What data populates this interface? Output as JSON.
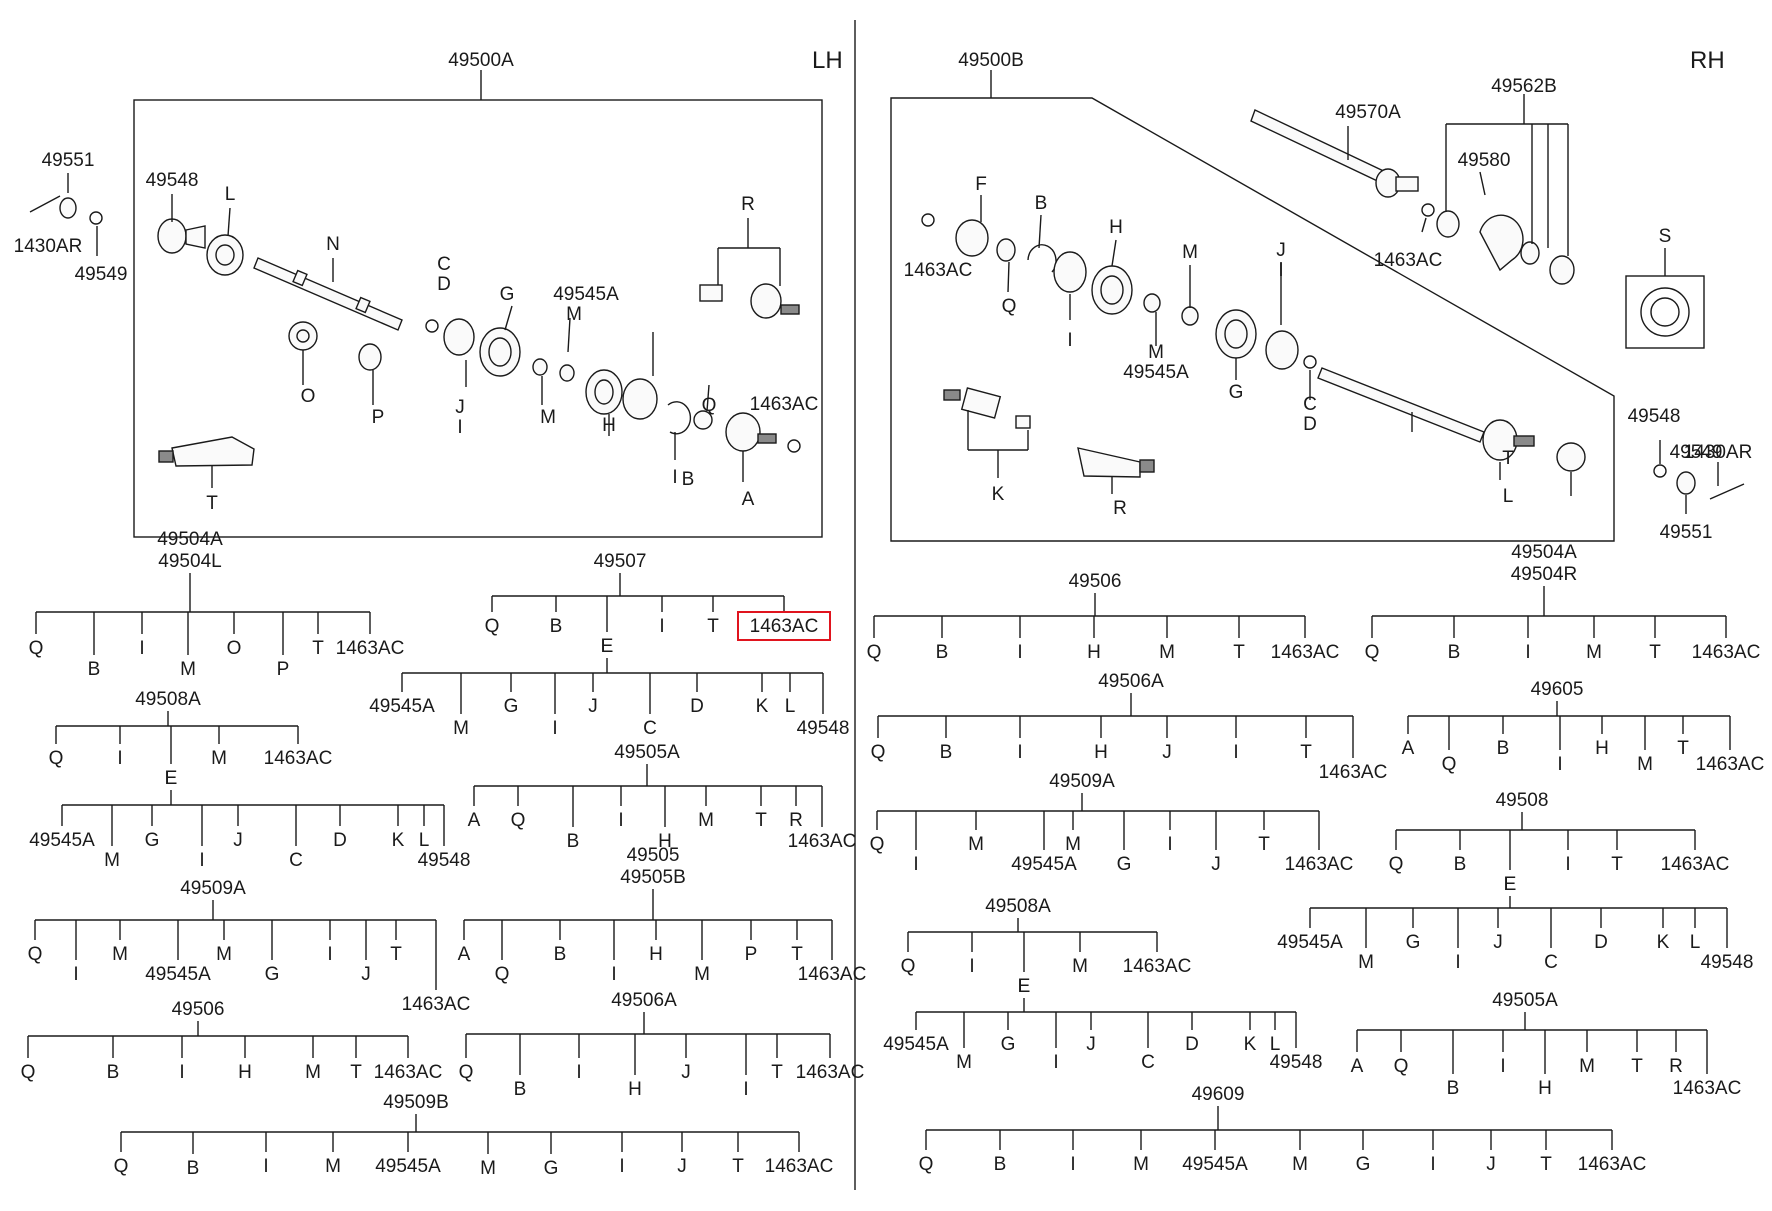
{
  "sides": {
    "left": "LH",
    "right": "RH"
  },
  "lh": {
    "assembly": "49500A",
    "labels": [
      "49551",
      "49548",
      "L",
      "N",
      "R",
      "1430AR",
      "49549",
      "C",
      "D",
      "G",
      "49545A",
      "M",
      "O",
      "P",
      "J",
      "I",
      "M",
      "H",
      "I",
      "Q",
      "1463AC",
      "B",
      "A",
      "T"
    ]
  },
  "rh": {
    "assembly": "49500B",
    "labels": [
      "49570A",
      "49562B",
      "49580",
      "1463AC",
      "S",
      "F",
      "B",
      "H",
      "M",
      "J",
      "I",
      "1463AC",
      "Q",
      "I",
      "M",
      "49545A",
      "G",
      "C",
      "D",
      "K",
      "R",
      "T",
      "L",
      "49548",
      "49549",
      "1430AR",
      "49551"
    ]
  },
  "trees": [
    {
      "id": "t1",
      "parent": "49504A\n49504L",
      "children": [
        "Q",
        "B",
        "I",
        "M",
        "O",
        "P",
        "T",
        "1463AC"
      ]
    },
    {
      "id": "t2",
      "parent": "49507",
      "children": [
        "Q",
        "B",
        "E",
        "I",
        "T",
        "1463AC"
      ],
      "highlight": "1463AC"
    },
    {
      "id": "t3",
      "parent": "E",
      "children": [
        "49545A",
        "M",
        "G",
        "I",
        "J",
        "C",
        "D",
        "K",
        "L",
        "49548"
      ]
    },
    {
      "id": "t4",
      "parent": "49508A",
      "children": [
        "Q",
        "I",
        "E",
        "M",
        "1463AC"
      ]
    },
    {
      "id": "t5",
      "parent": "E",
      "children": [
        "49545A",
        "M",
        "G",
        "I",
        "J",
        "C",
        "D",
        "K",
        "L",
        "49548"
      ]
    },
    {
      "id": "t6",
      "parent": "49505A",
      "children": [
        "A",
        "Q",
        "B",
        "I",
        "H",
        "M",
        "T",
        "R",
        "1463AC"
      ]
    },
    {
      "id": "t7",
      "parent": "49509A",
      "children": [
        "Q",
        "I",
        "M",
        "49545A",
        "M",
        "G",
        "I",
        "J",
        "T",
        "1463AC"
      ]
    },
    {
      "id": "t8",
      "parent": "49505\n49505B",
      "children": [
        "A",
        "Q",
        "B",
        "I",
        "H",
        "M",
        "P",
        "T",
        "1463AC"
      ]
    },
    {
      "id": "t9",
      "parent": "49506",
      "children": [
        "Q",
        "B",
        "I",
        "H",
        "M",
        "T",
        "1463AC"
      ]
    },
    {
      "id": "t10",
      "parent": "49506A",
      "children": [
        "Q",
        "B",
        "I",
        "H",
        "J",
        "I",
        "T",
        "1463AC"
      ]
    },
    {
      "id": "t11",
      "parent": "49509B",
      "children": [
        "Q",
        "B",
        "I",
        "M",
        "49545A",
        "M",
        "G",
        "I",
        "J",
        "T",
        "1463AC"
      ]
    },
    {
      "id": "t12",
      "parent": "49506",
      "children": [
        "Q",
        "B",
        "I",
        "H",
        "M",
        "T",
        "1463AC"
      ]
    },
    {
      "id": "t13",
      "parent": "49504A\n49504R",
      "children": [
        "Q",
        "B",
        "I",
        "M",
        "T",
        "1463AC"
      ]
    },
    {
      "id": "t14",
      "parent": "49506A",
      "children": [
        "Q",
        "B",
        "I",
        "H",
        "J",
        "I",
        "T",
        "1463AC"
      ]
    },
    {
      "id": "t15",
      "parent": "49605",
      "children": [
        "A",
        "Q",
        "B",
        "I",
        "H",
        "M",
        "T",
        "1463AC"
      ]
    },
    {
      "id": "t16",
      "parent": "49509A",
      "children": [
        "Q",
        "I",
        "M",
        "49545A",
        "M",
        "G",
        "I",
        "J",
        "T",
        "1463AC"
      ]
    },
    {
      "id": "t17",
      "parent": "49508",
      "children": [
        "Q",
        "B",
        "E",
        "I",
        "T",
        "1463AC"
      ]
    },
    {
      "id": "t18",
      "parent": "E",
      "children": [
        "49545A",
        "M",
        "G",
        "I",
        "J",
        "C",
        "D",
        "K",
        "L",
        "49548"
      ]
    },
    {
      "id": "t19",
      "parent": "49508A",
      "children": [
        "Q",
        "I",
        "E",
        "M",
        "1463AC"
      ]
    },
    {
      "id": "t20",
      "parent": "E",
      "children": [
        "49545A",
        "M",
        "G",
        "I",
        "J",
        "C",
        "D",
        "K",
        "L",
        "49548"
      ]
    },
    {
      "id": "t21",
      "parent": "49505A",
      "children": [
        "A",
        "Q",
        "B",
        "I",
        "H",
        "M",
        "T",
        "R",
        "1463AC"
      ]
    },
    {
      "id": "t22",
      "parent": "49609",
      "children": [
        "Q",
        "B",
        "I",
        "M",
        "49545A",
        "M",
        "G",
        "I",
        "J",
        "T",
        "1463AC"
      ]
    }
  ]
}
